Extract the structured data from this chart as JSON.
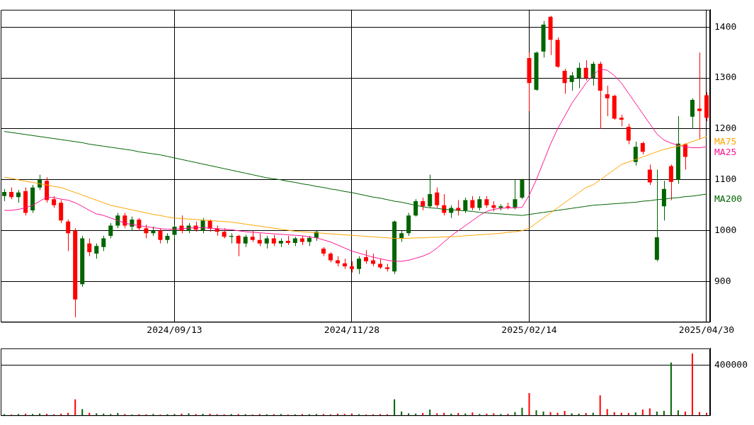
{
  "chart_data": [
    {
      "type": "candlestick",
      "grid": true,
      "categories": [
        null,
        null,
        null,
        null,
        null,
        null,
        null,
        null,
        null,
        null,
        null,
        null,
        null,
        null,
        null,
        null,
        null,
        null,
        null,
        null,
        null,
        null,
        null,
        null,
        "2024/09/13",
        null,
        null,
        null,
        null,
        null,
        null,
        null,
        null,
        null,
        null,
        null,
        null,
        null,
        null,
        null,
        null,
        null,
        null,
        null,
        null,
        null,
        null,
        null,
        null,
        "2024/11/28",
        null,
        null,
        null,
        null,
        null,
        null,
        null,
        null,
        null,
        null,
        null,
        null,
        null,
        null,
        null,
        null,
        null,
        null,
        null,
        null,
        null,
        null,
        null,
        null,
        "2025/02/14",
        null,
        null,
        null,
        null,
        null,
        null,
        null,
        null,
        null,
        null,
        null,
        null,
        null,
        null,
        null,
        null,
        null,
        null,
        null,
        null,
        null,
        null,
        null,
        null,
        "2025/04/30"
      ],
      "ohlc": [
        [
          1068,
          1082,
          1058,
          1076
        ],
        [
          1076,
          1085,
          1062,
          1066
        ],
        [
          1066,
          1080,
          1055,
          1075
        ],
        [
          1078,
          1085,
          1030,
          1035
        ],
        [
          1040,
          1090,
          1035,
          1085
        ],
        [
          1085,
          1110,
          1080,
          1100
        ],
        [
          1098,
          1105,
          1055,
          1060
        ],
        [
          1062,
          1068,
          1045,
          1050
        ],
        [
          1055,
          1060,
          1015,
          1020
        ],
        [
          1018,
          1022,
          960,
          995
        ],
        [
          1000,
          1005,
          830,
          865
        ],
        [
          895,
          990,
          890,
          985
        ],
        [
          975,
          985,
          950,
          958
        ],
        [
          955,
          975,
          945,
          970
        ],
        [
          968,
          990,
          960,
          985
        ],
        [
          990,
          1015,
          985,
          1010
        ],
        [
          1010,
          1035,
          1005,
          1030
        ],
        [
          1030,
          1035,
          1005,
          1010
        ],
        [
          1008,
          1028,
          1000,
          1022
        ],
        [
          1022,
          1025,
          1000,
          1005
        ],
        [
          1005,
          1012,
          985,
          995
        ],
        [
          995,
          1008,
          990,
          1000
        ],
        [
          1000,
          1005,
          975,
          982
        ],
        [
          982,
          995,
          975,
          990
        ],
        [
          992,
          1012,
          985,
          1008
        ],
        [
          1010,
          1030,
          995,
          1000
        ],
        [
          1000,
          1015,
          995,
          1010
        ],
        [
          1010,
          1018,
          998,
          1002
        ],
        [
          1000,
          1025,
          995,
          1020
        ],
        [
          1020,
          1022,
          998,
          1004
        ],
        [
          1004,
          1010,
          990,
          998
        ],
        [
          998,
          1005,
          985,
          988
        ],
        [
          988,
          995,
          975,
          990
        ],
        [
          990,
          992,
          950,
          975
        ],
        [
          975,
          992,
          968,
          988
        ],
        [
          988,
          1000,
          978,
          982
        ],
        [
          982,
          995,
          970,
          975
        ],
        [
          975,
          990,
          965,
          985
        ],
        [
          985,
          992,
          970,
          975
        ],
        [
          975,
          985,
          968,
          980
        ],
        [
          980,
          990,
          972,
          976
        ],
        [
          976,
          988,
          970,
          985
        ],
        [
          985,
          990,
          972,
          978
        ],
        [
          978,
          990,
          970,
          986
        ],
        [
          986,
          1000,
          980,
          998
        ],
        [
          965,
          968,
          950,
          955
        ],
        [
          955,
          958,
          938,
          942
        ],
        [
          942,
          950,
          930,
          936
        ],
        [
          936,
          945,
          925,
          930
        ],
        [
          930,
          940,
          918,
          925
        ],
        [
          925,
          950,
          915,
          945
        ],
        [
          948,
          962,
          935,
          940
        ],
        [
          942,
          955,
          930,
          935
        ],
        [
          935,
          945,
          925,
          928
        ],
        [
          928,
          935,
          920,
          925
        ],
        [
          920,
          1020,
          915,
          1018
        ],
        [
          985,
          1000,
          978,
          995
        ],
        [
          995,
          1035,
          990,
          1030
        ],
        [
          1030,
          1062,
          1028,
          1058
        ],
        [
          1058,
          1065,
          1040,
          1048
        ],
        [
          1048,
          1110,
          1045,
          1072
        ],
        [
          1075,
          1085,
          1045,
          1050
        ],
        [
          1050,
          1072,
          1030,
          1035
        ],
        [
          1035,
          1050,
          1025,
          1045
        ],
        [
          1045,
          1060,
          1030,
          1040
        ],
        [
          1040,
          1065,
          1035,
          1060
        ],
        [
          1060,
          1068,
          1040,
          1045
        ],
        [
          1045,
          1068,
          1040,
          1062
        ],
        [
          1062,
          1068,
          1045,
          1050
        ],
        [
          1050,
          1058,
          1038,
          1045
        ],
        [
          1045,
          1052,
          1040,
          1048
        ],
        [
          1048,
          1055,
          1042,
          1046
        ],
        [
          1046,
          1100,
          1042,
          1062
        ],
        [
          1065,
          1102,
          1062,
          1100
        ],
        [
          1339,
          1350,
          1235,
          1290
        ],
        [
          1277,
          1352,
          1275,
          1350
        ],
        [
          1352,
          1412,
          1340,
          1405
        ],
        [
          1420,
          1422,
          1345,
          1375
        ],
        [
          1375,
          1380,
          1320,
          1322
        ],
        [
          1314,
          1318,
          1269,
          1290
        ],
        [
          1292,
          1312,
          1275,
          1305
        ],
        [
          1300,
          1330,
          1280,
          1320
        ],
        [
          1320,
          1335,
          1295,
          1300
        ],
        [
          1300,
          1332,
          1285,
          1328
        ],
        [
          1328,
          1332,
          1200,
          1275
        ],
        [
          1268,
          1285,
          1225,
          1260
        ],
        [
          1265,
          1267,
          1218,
          1220
        ],
        [
          1222,
          1228,
          1205,
          1218
        ],
        [
          1204,
          1210,
          1170,
          1177
        ],
        [
          1135,
          1175,
          1128,
          1165
        ],
        [
          1172,
          1175,
          1150,
          1155
        ],
        [
          1120,
          1130,
          1090,
          1095
        ],
        [
          943,
          1120,
          940,
          987
        ],
        [
          1048,
          1098,
          1020,
          1082
        ],
        [
          1127,
          1130,
          1060,
          1096
        ],
        [
          1100,
          1225,
          1092,
          1171
        ],
        [
          1170,
          1172,
          1120,
          1145
        ],
        [
          1224,
          1260,
          1200,
          1257
        ],
        [
          1240,
          1350,
          1180,
          1235
        ],
        [
          1266,
          1272,
          1215,
          1222
        ]
      ],
      "colors": [
        "#006400",
        "#ff0000",
        "#006400",
        "#ff0000",
        "#006400",
        "#006400",
        "#ff0000",
        "#ff0000",
        "#ff0000",
        "#ff0000",
        "#ff0000",
        "#006400",
        "#ff0000",
        "#006400",
        "#006400",
        "#006400",
        "#006400",
        "#ff0000",
        "#006400",
        "#ff0000",
        "#ff0000",
        "#006400",
        "#ff0000",
        "#006400",
        "#006400",
        "#ff0000",
        "#006400",
        "#ff0000",
        "#006400",
        "#ff0000",
        "#ff0000",
        "#ff0000",
        "#006400",
        "#ff0000",
        "#006400",
        "#ff0000",
        "#ff0000",
        "#006400",
        "#ff0000",
        "#006400",
        "#ff0000",
        "#006400",
        "#ff0000",
        "#006400",
        "#006400",
        "#ff0000",
        "#ff0000",
        "#ff0000",
        "#ff0000",
        "#ff0000",
        "#006400",
        "#ff0000",
        "#ff0000",
        "#ff0000",
        "#ff0000",
        "#006400",
        "#006400",
        "#006400",
        "#006400",
        "#ff0000",
        "#006400",
        "#ff0000",
        "#ff0000",
        "#006400",
        "#ff0000",
        "#006400",
        "#ff0000",
        "#006400",
        "#ff0000",
        "#ff0000",
        "#006400",
        "#ff0000",
        "#006400",
        "#006400",
        "#ff0000",
        "#006400",
        "#006400",
        "#ff0000",
        "#ff0000",
        "#ff0000",
        "#006400",
        "#006400",
        "#ff0000",
        "#006400",
        "#ff0000",
        "#ff0000",
        "#ff0000",
        "#ff0000",
        "#ff0000",
        "#006400",
        "#ff0000",
        "#ff0000",
        "#006400",
        "#006400",
        "#ff0000",
        "#006400",
        "#ff0000",
        "#006400",
        "#ff0000",
        "#ff0000"
      ],
      "series": [
        {
          "type": "line",
          "name": "MA75",
          "color": "#ffa500",
          "values": [
            1105,
            1103,
            1100,
            1097,
            1095,
            1092,
            1090,
            1087,
            1085,
            1080,
            1075,
            1070,
            1065,
            1060,
            1055,
            1050,
            1047,
            1044,
            1041,
            1038,
            1035,
            1032,
            1030,
            1027,
            1025,
            1024,
            1023,
            1022,
            1021,
            1020,
            1019,
            1018,
            1017,
            1015,
            1013,
            1011,
            1009,
            1007,
            1005,
            1003,
            1001,
            999,
            998,
            997,
            996,
            995,
            994,
            993,
            992,
            991,
            990,
            989,
            988,
            987,
            986,
            985,
            985,
            985,
            986,
            986,
            987,
            987,
            988,
            988,
            989,
            990,
            991,
            992,
            993,
            994,
            995,
            997,
            998,
            1000,
            1005,
            1015,
            1025,
            1035,
            1045,
            1055,
            1065,
            1075,
            1085,
            1090,
            1100,
            1110,
            1120,
            1130,
            1135,
            1140,
            1145,
            1150,
            1155,
            1160,
            1163,
            1166,
            1170,
            1175,
            1180,
            1185
          ]
        },
        {
          "type": "line",
          "name": "MA25",
          "color": "#ff1493",
          "values": [
            1040,
            1040,
            1042,
            1045,
            1050,
            1058,
            1066,
            1065,
            1062,
            1060,
            1055,
            1048,
            1040,
            1033,
            1030,
            1025,
            1020,
            1015,
            1012,
            1010,
            1008,
            1006,
            1004,
            1003,
            1003,
            1004,
            1005,
            1006,
            1006,
            1005,
            1004,
            1003,
            1002,
            1000,
            998,
            997,
            996,
            995,
            994,
            993,
            992,
            991,
            990,
            988,
            986,
            982,
            978,
            972,
            966,
            960,
            956,
            952,
            948,
            945,
            942,
            940,
            940,
            942,
            946,
            950,
            956,
            966,
            978,
            990,
            1000,
            1010,
            1020,
            1030,
            1038,
            1042,
            1044,
            1045,
            1045,
            1046,
            1070,
            1100,
            1135,
            1170,
            1200,
            1225,
            1250,
            1270,
            1290,
            1305,
            1318,
            1315,
            1305,
            1290,
            1270,
            1250,
            1230,
            1210,
            1190,
            1178,
            1172,
            1168,
            1165,
            1163,
            1163,
            1165
          ]
        },
        {
          "type": "line",
          "name": "MA200",
          "color": "#006400",
          "values": [
            1195,
            1193,
            1191,
            1189,
            1187,
            1185,
            1183,
            1181,
            1179,
            1177,
            1175,
            1173,
            1170,
            1168,
            1166,
            1164,
            1162,
            1160,
            1158,
            1155,
            1153,
            1151,
            1149,
            1146,
            1143,
            1140,
            1137,
            1134,
            1131,
            1128,
            1125,
            1122,
            1119,
            1116,
            1113,
            1110,
            1107,
            1104,
            1102,
            1100,
            1097,
            1095,
            1092,
            1090,
            1087,
            1085,
            1082,
            1080,
            1077,
            1075,
            1072,
            1069,
            1066,
            1064,
            1061,
            1058,
            1056,
            1053,
            1050,
            1047,
            1045,
            1044,
            1042,
            1041,
            1040,
            1039,
            1038,
            1036,
            1035,
            1034,
            1033,
            1032,
            1031,
            1030,
            1032,
            1034,
            1036,
            1038,
            1040,
            1042,
            1044,
            1046,
            1048,
            1050,
            1051,
            1052,
            1053,
            1054,
            1055,
            1056,
            1058,
            1059,
            1061,
            1062,
            1064,
            1065,
            1067,
            1068,
            1070,
            1072
          ]
        }
      ],
      "ylim": [
        821,
        1434
      ],
      "yticks": [
        900,
        1000,
        1100,
        1200,
        1300,
        1400
      ]
    },
    {
      "type": "bar",
      "grid": "y",
      "tick_labels": "y",
      "categories": [
        null,
        null,
        null,
        null,
        null,
        null,
        null,
        null,
        null,
        null,
        null,
        null,
        null,
        null,
        null,
        null,
        null,
        null,
        null,
        null,
        null,
        null,
        null,
        null,
        null,
        null,
        null,
        null,
        null,
        null,
        null,
        null,
        null,
        null,
        null,
        null,
        null,
        null,
        null,
        null,
        null,
        null,
        null,
        null,
        null,
        null,
        null,
        null,
        null,
        null,
        null,
        null,
        null,
        null,
        null,
        null,
        null,
        null,
        null,
        null,
        null,
        null,
        null,
        null,
        null,
        null,
        null,
        null,
        null,
        null,
        null,
        null,
        null,
        null,
        null,
        null,
        null,
        null,
        null,
        null,
        null,
        null,
        null,
        null,
        null,
        null,
        null,
        null,
        null,
        null,
        null,
        null,
        null,
        null,
        null,
        null,
        null,
        null,
        null,
        null
      ],
      "values": [
        8000,
        6000,
        10000,
        12000,
        9000,
        14000,
        11000,
        7000,
        12000,
        20000,
        127000,
        50000,
        20000,
        15000,
        12000,
        10000,
        18000,
        9000,
        6000,
        8000,
        7000,
        9000,
        6000,
        8000,
        10000,
        12000,
        15000,
        9000,
        11000,
        13000,
        8000,
        7000,
        9000,
        10000,
        8000,
        6000,
        9000,
        7000,
        8000,
        10000,
        6000,
        7000,
        9000,
        8000,
        10000,
        9000,
        7000,
        12000,
        10000,
        14000,
        8000,
        6000,
        7000,
        9000,
        8000,
        127000,
        30000,
        15000,
        12000,
        18000,
        45000,
        15000,
        20000,
        12000,
        18000,
        14000,
        22000,
        10000,
        12000,
        15000,
        9000,
        11000,
        25000,
        60000,
        177000,
        40000,
        30000,
        25000,
        20000,
        35000,
        15000,
        12000,
        18000,
        20000,
        159000,
        50000,
        25000,
        20000,
        18000,
        22000,
        45000,
        55000,
        30000,
        35000,
        423000,
        40000,
        30000,
        495000,
        25000,
        20000
      ],
      "colors": [
        "#006400",
        "#ff0000",
        "#006400",
        "#ff0000",
        "#006400",
        "#006400",
        "#ff0000",
        "#ff0000",
        "#ff0000",
        "#ff0000",
        "#ff0000",
        "#006400",
        "#ff0000",
        "#006400",
        "#006400",
        "#006400",
        "#006400",
        "#ff0000",
        "#006400",
        "#ff0000",
        "#ff0000",
        "#006400",
        "#ff0000",
        "#006400",
        "#006400",
        "#ff0000",
        "#006400",
        "#ff0000",
        "#006400",
        "#ff0000",
        "#ff0000",
        "#ff0000",
        "#006400",
        "#ff0000",
        "#006400",
        "#ff0000",
        "#ff0000",
        "#006400",
        "#ff0000",
        "#006400",
        "#ff0000",
        "#006400",
        "#ff0000",
        "#006400",
        "#006400",
        "#ff0000",
        "#ff0000",
        "#ff0000",
        "#ff0000",
        "#ff0000",
        "#006400",
        "#ff0000",
        "#ff0000",
        "#ff0000",
        "#ff0000",
        "#006400",
        "#006400",
        "#006400",
        "#006400",
        "#ff0000",
        "#006400",
        "#ff0000",
        "#ff0000",
        "#006400",
        "#ff0000",
        "#006400",
        "#ff0000",
        "#006400",
        "#ff0000",
        "#ff0000",
        "#006400",
        "#ff0000",
        "#006400",
        "#006400",
        "#ff0000",
        "#006400",
        "#006400",
        "#ff0000",
        "#ff0000",
        "#ff0000",
        "#006400",
        "#006400",
        "#ff0000",
        "#006400",
        "#ff0000",
        "#ff0000",
        "#ff0000",
        "#ff0000",
        "#ff0000",
        "#006400",
        "#ff0000",
        "#ff0000",
        "#006400",
        "#006400",
        "#006400",
        "#006400",
        "#ff0000",
        "#ff0000",
        "#ff0000",
        "#ff0000"
      ],
      "ylim": [
        0,
        536000
      ],
      "yticks": [
        400000
      ]
    }
  ]
}
